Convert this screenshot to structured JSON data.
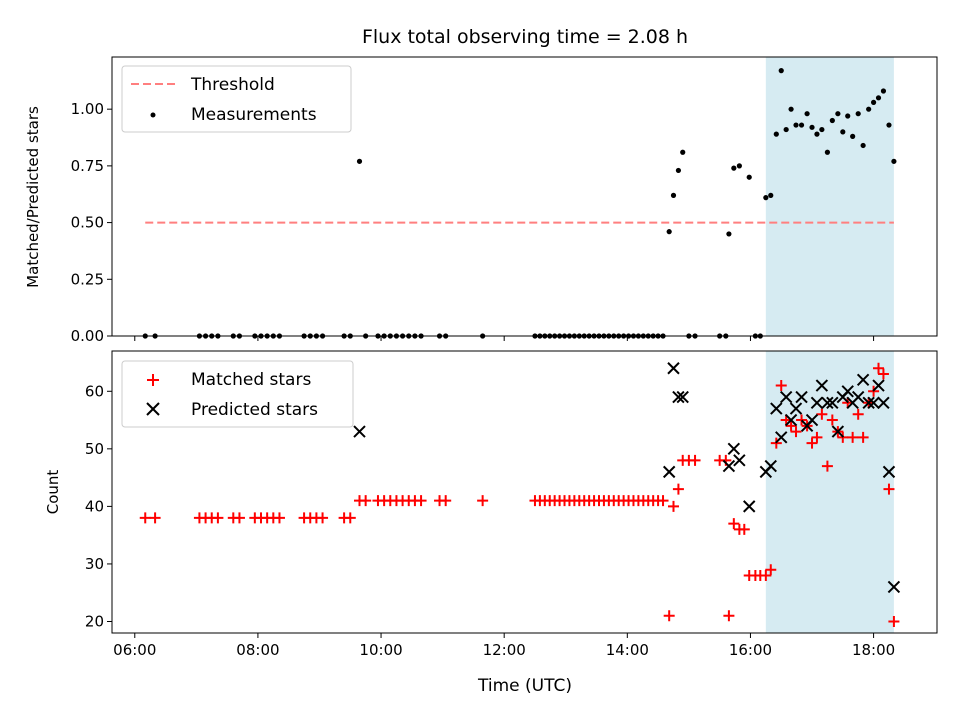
{
  "chart_data": {
    "title": "Flux total observing time = 2.08 h",
    "x": {
      "label": "Time (UTC)",
      "range_hours": [
        5.63,
        19.03
      ],
      "ticks": [
        6,
        8,
        10,
        12,
        14,
        16,
        18
      ],
      "tick_labels": [
        "06:00",
        "08:00",
        "10:00",
        "12:00",
        "14:00",
        "16:00",
        "18:00"
      ]
    },
    "highlight_span_hours": [
      16.25,
      18.33
    ],
    "colors": {
      "highlight": "#add8e6",
      "threshold": "#ff7f7f",
      "measurements": "#000000",
      "matched": "#ff0000",
      "predicted": "#000000"
    },
    "panels": [
      {
        "type": "scatter",
        "ylabel": "Matched/Predicted stars",
        "ylim": [
          0,
          1.23
        ],
        "yticks": [
          0,
          0.25,
          0.5,
          0.75,
          1.0
        ],
        "ytick_labels": [
          "0.00",
          "0.25",
          "0.50",
          "0.75",
          "1.00"
        ],
        "legend": {
          "position": "upper-left",
          "entries": [
            {
              "label": "Threshold",
              "marker": "dashed-line"
            },
            {
              "label": "Measurements",
              "marker": "dot"
            }
          ]
        },
        "threshold": {
          "value": 0.5,
          "x_range": [
            6.17,
            18.33
          ]
        },
        "measurements": [
          [
            6.17,
            0
          ],
          [
            6.33,
            0
          ],
          [
            7.05,
            0
          ],
          [
            7.15,
            0
          ],
          [
            7.25,
            0
          ],
          [
            7.35,
            0
          ],
          [
            7.6,
            0
          ],
          [
            7.7,
            0
          ],
          [
            7.95,
            0
          ],
          [
            8.05,
            0
          ],
          [
            8.15,
            0
          ],
          [
            8.25,
            0
          ],
          [
            8.35,
            0
          ],
          [
            8.75,
            0
          ],
          [
            8.85,
            0
          ],
          [
            8.95,
            0
          ],
          [
            9.05,
            0
          ],
          [
            9.4,
            0
          ],
          [
            9.5,
            0
          ],
          [
            9.65,
            0.77
          ],
          [
            9.75,
            0
          ],
          [
            9.95,
            0
          ],
          [
            10.05,
            0
          ],
          [
            10.15,
            0
          ],
          [
            10.25,
            0
          ],
          [
            10.35,
            0
          ],
          [
            10.45,
            0
          ],
          [
            10.55,
            0
          ],
          [
            10.65,
            0
          ],
          [
            10.95,
            0
          ],
          [
            11.05,
            0
          ],
          [
            11.65,
            0
          ],
          [
            12.5,
            0
          ],
          [
            12.58,
            0
          ],
          [
            12.66,
            0
          ],
          [
            12.74,
            0
          ],
          [
            12.82,
            0
          ],
          [
            12.9,
            0
          ],
          [
            12.98,
            0
          ],
          [
            13.06,
            0
          ],
          [
            13.14,
            0
          ],
          [
            13.22,
            0
          ],
          [
            13.3,
            0
          ],
          [
            13.38,
            0
          ],
          [
            13.46,
            0
          ],
          [
            13.54,
            0
          ],
          [
            13.62,
            0
          ],
          [
            13.7,
            0
          ],
          [
            13.78,
            0
          ],
          [
            13.86,
            0
          ],
          [
            13.94,
            0
          ],
          [
            14.02,
            0
          ],
          [
            14.1,
            0
          ],
          [
            14.18,
            0
          ],
          [
            14.26,
            0
          ],
          [
            14.34,
            0
          ],
          [
            14.42,
            0
          ],
          [
            14.5,
            0
          ],
          [
            14.58,
            0
          ],
          [
            14.68,
            0.46
          ],
          [
            14.75,
            0.62
          ],
          [
            14.83,
            0.73
          ],
          [
            14.9,
            0.81
          ],
          [
            15.0,
            0
          ],
          [
            15.1,
            0
          ],
          [
            15.5,
            0
          ],
          [
            15.6,
            0
          ],
          [
            15.65,
            0.45
          ],
          [
            15.73,
            0.74
          ],
          [
            15.82,
            0.75
          ],
          [
            15.98,
            0.7
          ],
          [
            16.08,
            0
          ],
          [
            16.16,
            0
          ],
          [
            16.25,
            0.61
          ],
          [
            16.33,
            0.62
          ],
          [
            16.42,
            0.89
          ],
          [
            16.5,
            1.17
          ],
          [
            16.58,
            0.91
          ],
          [
            16.66,
            1.0
          ],
          [
            16.74,
            0.93
          ],
          [
            16.83,
            0.93
          ],
          [
            16.92,
            0.98
          ],
          [
            17.0,
            0.92
          ],
          [
            17.08,
            0.89
          ],
          [
            17.16,
            0.91
          ],
          [
            17.25,
            0.81
          ],
          [
            17.33,
            0.95
          ],
          [
            17.42,
            0.98
          ],
          [
            17.5,
            0.9
          ],
          [
            17.58,
            0.97
          ],
          [
            17.66,
            0.88
          ],
          [
            17.75,
            0.98
          ],
          [
            17.83,
            0.84
          ],
          [
            17.92,
            1.0
          ],
          [
            18.0,
            1.03
          ],
          [
            18.08,
            1.05
          ],
          [
            18.16,
            1.08
          ],
          [
            18.25,
            0.93
          ],
          [
            18.33,
            0.77
          ]
        ]
      },
      {
        "type": "scatter",
        "ylabel": "Count",
        "ylim": [
          18,
          67
        ],
        "yticks": [
          20,
          30,
          40,
          50,
          60
        ],
        "ytick_labels": [
          "20",
          "30",
          "40",
          "50",
          "60"
        ],
        "legend": {
          "position": "upper-left",
          "entries": [
            {
              "label": "Matched stars",
              "marker": "plus"
            },
            {
              "label": "Predicted stars",
              "marker": "x"
            }
          ]
        },
        "matched_stars": [
          [
            6.17,
            38
          ],
          [
            6.33,
            38
          ],
          [
            7.05,
            38
          ],
          [
            7.15,
            38
          ],
          [
            7.25,
            38
          ],
          [
            7.35,
            38
          ],
          [
            7.6,
            38
          ],
          [
            7.7,
            38
          ],
          [
            7.95,
            38
          ],
          [
            8.05,
            38
          ],
          [
            8.15,
            38
          ],
          [
            8.25,
            38
          ],
          [
            8.35,
            38
          ],
          [
            8.75,
            38
          ],
          [
            8.85,
            38
          ],
          [
            8.95,
            38
          ],
          [
            9.05,
            38
          ],
          [
            9.4,
            38
          ],
          [
            9.5,
            38
          ],
          [
            9.65,
            41
          ],
          [
            9.75,
            41
          ],
          [
            9.95,
            41
          ],
          [
            10.05,
            41
          ],
          [
            10.15,
            41
          ],
          [
            10.25,
            41
          ],
          [
            10.35,
            41
          ],
          [
            10.45,
            41
          ],
          [
            10.55,
            41
          ],
          [
            10.65,
            41
          ],
          [
            10.95,
            41
          ],
          [
            11.05,
            41
          ],
          [
            11.65,
            41
          ],
          [
            12.5,
            41
          ],
          [
            12.58,
            41
          ],
          [
            12.66,
            41
          ],
          [
            12.74,
            41
          ],
          [
            12.82,
            41
          ],
          [
            12.9,
            41
          ],
          [
            12.98,
            41
          ],
          [
            13.06,
            41
          ],
          [
            13.14,
            41
          ],
          [
            13.22,
            41
          ],
          [
            13.3,
            41
          ],
          [
            13.38,
            41
          ],
          [
            13.46,
            41
          ],
          [
            13.54,
            41
          ],
          [
            13.62,
            41
          ],
          [
            13.7,
            41
          ],
          [
            13.78,
            41
          ],
          [
            13.86,
            41
          ],
          [
            13.94,
            41
          ],
          [
            14.02,
            41
          ],
          [
            14.1,
            41
          ],
          [
            14.18,
            41
          ],
          [
            14.26,
            41
          ],
          [
            14.34,
            41
          ],
          [
            14.42,
            41
          ],
          [
            14.5,
            41
          ],
          [
            14.58,
            41
          ],
          [
            14.68,
            21
          ],
          [
            14.75,
            40
          ],
          [
            14.83,
            43
          ],
          [
            14.9,
            48
          ],
          [
            15.0,
            48
          ],
          [
            15.1,
            48
          ],
          [
            15.5,
            48
          ],
          [
            15.6,
            48
          ],
          [
            15.65,
            21
          ],
          [
            15.73,
            37
          ],
          [
            15.82,
            36
          ],
          [
            15.9,
            36
          ],
          [
            15.98,
            28
          ],
          [
            16.08,
            28
          ],
          [
            16.16,
            28
          ],
          [
            16.25,
            28
          ],
          [
            16.33,
            29
          ],
          [
            16.42,
            51
          ],
          [
            16.5,
            61
          ],
          [
            16.58,
            55
          ],
          [
            16.66,
            54
          ],
          [
            16.74,
            53
          ],
          [
            16.83,
            55
          ],
          [
            16.92,
            54
          ],
          [
            17.0,
            51
          ],
          [
            17.08,
            52
          ],
          [
            17.16,
            56
          ],
          [
            17.25,
            47
          ],
          [
            17.33,
            55
          ],
          [
            17.42,
            53
          ],
          [
            17.5,
            52
          ],
          [
            17.58,
            58
          ],
          [
            17.66,
            52
          ],
          [
            17.75,
            56
          ],
          [
            17.83,
            52
          ],
          [
            17.92,
            58
          ],
          [
            18.0,
            60
          ],
          [
            18.08,
            64
          ],
          [
            18.16,
            63
          ],
          [
            18.25,
            43
          ],
          [
            18.33,
            20
          ]
        ],
        "predicted_stars": [
          [
            9.65,
            53
          ],
          [
            14.68,
            46
          ],
          [
            14.75,
            64
          ],
          [
            14.83,
            59
          ],
          [
            14.9,
            59
          ],
          [
            15.65,
            47
          ],
          [
            15.73,
            50
          ],
          [
            15.82,
            48
          ],
          [
            15.98,
            40
          ],
          [
            16.25,
            46
          ],
          [
            16.33,
            47
          ],
          [
            16.42,
            57
          ],
          [
            16.5,
            52
          ],
          [
            16.58,
            59
          ],
          [
            16.66,
            55
          ],
          [
            16.74,
            57
          ],
          [
            16.83,
            59
          ],
          [
            16.92,
            54
          ],
          [
            17.0,
            55
          ],
          [
            17.08,
            58
          ],
          [
            17.16,
            61
          ],
          [
            17.25,
            58
          ],
          [
            17.33,
            58
          ],
          [
            17.42,
            53
          ],
          [
            17.5,
            59
          ],
          [
            17.58,
            60
          ],
          [
            17.66,
            58
          ],
          [
            17.75,
            59
          ],
          [
            17.83,
            62
          ],
          [
            17.92,
            58
          ],
          [
            18.0,
            58
          ],
          [
            18.08,
            61
          ],
          [
            18.16,
            58
          ],
          [
            18.25,
            46
          ],
          [
            18.33,
            26
          ]
        ]
      }
    ]
  }
}
